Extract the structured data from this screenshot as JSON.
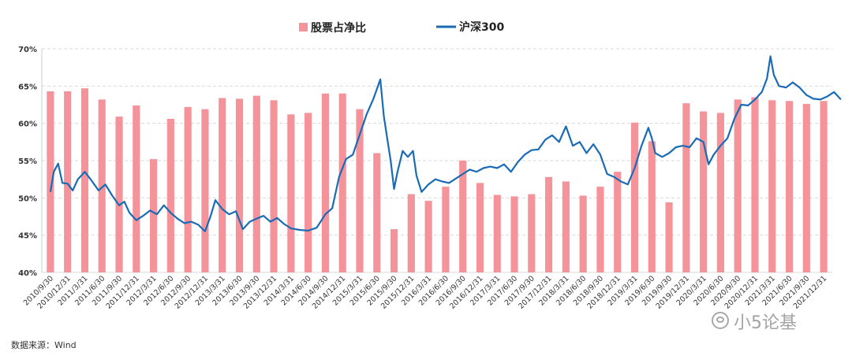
{
  "source": "数据来源：Wind",
  "watermark": "小5论基",
  "chart_data": {
    "type": "bar+line",
    "legend": {
      "placement": "top-center"
    },
    "grid": {
      "y": true,
      "x": false
    },
    "ylim": [
      40,
      70
    ],
    "yticks": [
      "40%",
      "45%",
      "50%",
      "55%",
      "60%",
      "65%",
      "70%"
    ],
    "yticks_values": [
      40,
      45,
      50,
      55,
      60,
      65,
      70
    ],
    "categories": [
      "2010/9/30",
      "2010/12/31",
      "2011/3/31",
      "2011/6/30",
      "2011/9/30",
      "2011/12/31",
      "2012/3/31",
      "2012/6/30",
      "2012/9/30",
      "2012/12/31",
      "2013/3/31",
      "2013/6/30",
      "2013/9/30",
      "2013/12/31",
      "2014/3/31",
      "2014/6/30",
      "2014/9/30",
      "2014/12/31",
      "2015/3/31",
      "2015/6/30",
      "2015/9/30",
      "2015/12/31",
      "2016/3/31",
      "2016/6/30",
      "2016/9/30",
      "2016/12/31",
      "2017/3/31",
      "2017/6/30",
      "2017/9/30",
      "2017/12/31",
      "2018/3/31",
      "2018/6/30",
      "2018/9/30",
      "2018/12/31",
      "2019/3/31",
      "2019/6/30",
      "2019/9/30",
      "2019/12/31",
      "2020/3/31",
      "2020/6/30",
      "2020/9/30",
      "2020/12/31",
      "2021/3/31",
      "2021/6/30",
      "2021/9/30",
      "2021/12/31"
    ],
    "series": [
      {
        "name": "股票占净比",
        "kind": "bar",
        "color": "#F5939B",
        "values": [
          64.3,
          64.3,
          64.7,
          63.2,
          60.9,
          62.4,
          55.2,
          60.6,
          62.2,
          61.9,
          63.4,
          63.3,
          63.7,
          63.1,
          61.2,
          61.4,
          64.0,
          64.0,
          61.9,
          56.0,
          45.8,
          50.5,
          49.6,
          51.5,
          55.0,
          52.0,
          50.4,
          50.2,
          50.5,
          52.8,
          52.2,
          50.3,
          51.5,
          53.5,
          60.1,
          57.6,
          49.4,
          62.7,
          61.6,
          61.4,
          63.2,
          63.5,
          63.1,
          63.0,
          62.6,
          63.0
        ]
      },
      {
        "name": "沪深300",
        "kind": "line",
        "color": "#1A6BB5",
        "points": [
          [
            0,
            50.8
          ],
          [
            0.2,
            53.5
          ],
          [
            0.45,
            54.6
          ],
          [
            0.7,
            52.0
          ],
          [
            1.0,
            51.9
          ],
          [
            1.3,
            51.0
          ],
          [
            1.6,
            52.5
          ],
          [
            2.0,
            53.5
          ],
          [
            2.4,
            52.3
          ],
          [
            2.8,
            51.0
          ],
          [
            3.2,
            51.8
          ],
          [
            3.6,
            50.3
          ],
          [
            4.0,
            49.0
          ],
          [
            4.3,
            49.5
          ],
          [
            4.6,
            48.0
          ],
          [
            5.0,
            47.0
          ],
          [
            5.4,
            47.6
          ],
          [
            5.8,
            48.3
          ],
          [
            6.2,
            47.8
          ],
          [
            6.6,
            49.0
          ],
          [
            7.0,
            48.0
          ],
          [
            7.4,
            47.2
          ],
          [
            7.8,
            46.6
          ],
          [
            8.2,
            46.8
          ],
          [
            8.6,
            46.4
          ],
          [
            9.0,
            45.5
          ],
          [
            9.3,
            47.4
          ],
          [
            9.6,
            49.7
          ],
          [
            10.0,
            48.5
          ],
          [
            10.4,
            47.8
          ],
          [
            10.8,
            48.2
          ],
          [
            11.2,
            45.8
          ],
          [
            11.6,
            46.8
          ],
          [
            12.0,
            47.2
          ],
          [
            12.4,
            47.6
          ],
          [
            12.8,
            46.8
          ],
          [
            13.2,
            47.3
          ],
          [
            13.6,
            46.5
          ],
          [
            14.0,
            45.9
          ],
          [
            14.5,
            45.7
          ],
          [
            15.0,
            45.6
          ],
          [
            15.5,
            46.0
          ],
          [
            16.0,
            47.8
          ],
          [
            16.4,
            48.6
          ],
          [
            16.8,
            52.8
          ],
          [
            17.2,
            55.2
          ],
          [
            17.6,
            55.8
          ],
          [
            18.0,
            58.5
          ],
          [
            18.4,
            61.2
          ],
          [
            18.8,
            63.3
          ],
          [
            19.2,
            65.9
          ],
          [
            19.4,
            61.0
          ],
          [
            19.6,
            58.0
          ],
          [
            19.8,
            55.0
          ],
          [
            20.0,
            51.2
          ],
          [
            20.2,
            53.5
          ],
          [
            20.5,
            56.3
          ],
          [
            20.8,
            55.5
          ],
          [
            21.1,
            56.3
          ],
          [
            21.3,
            53.0
          ],
          [
            21.6,
            50.8
          ],
          [
            22.0,
            51.8
          ],
          [
            22.4,
            52.5
          ],
          [
            22.8,
            52.2
          ],
          [
            23.2,
            52.0
          ],
          [
            23.6,
            52.6
          ],
          [
            24.0,
            53.2
          ],
          [
            24.4,
            53.8
          ],
          [
            24.8,
            53.5
          ],
          [
            25.2,
            54.0
          ],
          [
            25.6,
            54.2
          ],
          [
            26.0,
            54.0
          ],
          [
            26.4,
            54.5
          ],
          [
            26.8,
            53.5
          ],
          [
            27.2,
            54.8
          ],
          [
            27.6,
            55.8
          ],
          [
            28.0,
            56.4
          ],
          [
            28.4,
            56.5
          ],
          [
            28.8,
            57.8
          ],
          [
            29.2,
            58.4
          ],
          [
            29.6,
            57.5
          ],
          [
            30.0,
            59.6
          ],
          [
            30.4,
            57.0
          ],
          [
            30.8,
            57.5
          ],
          [
            31.2,
            56.0
          ],
          [
            31.6,
            57.2
          ],
          [
            32.0,
            55.8
          ],
          [
            32.4,
            53.2
          ],
          [
            32.8,
            52.8
          ],
          [
            33.2,
            52.2
          ],
          [
            33.6,
            51.8
          ],
          [
            34.0,
            54.0
          ],
          [
            34.4,
            57.0
          ],
          [
            34.8,
            59.4
          ],
          [
            35.0,
            58.0
          ],
          [
            35.2,
            56.0
          ],
          [
            35.6,
            55.5
          ],
          [
            36.0,
            56.0
          ],
          [
            36.4,
            56.8
          ],
          [
            36.8,
            57.0
          ],
          [
            37.2,
            56.8
          ],
          [
            37.6,
            58.0
          ],
          [
            38.0,
            57.5
          ],
          [
            38.3,
            54.5
          ],
          [
            38.6,
            55.8
          ],
          [
            39.0,
            57.0
          ],
          [
            39.4,
            58.0
          ],
          [
            39.8,
            60.6
          ],
          [
            40.2,
            62.5
          ],
          [
            40.6,
            62.4
          ],
          [
            41.0,
            63.2
          ],
          [
            41.4,
            64.2
          ],
          [
            41.7,
            66.0
          ],
          [
            41.9,
            69.0
          ],
          [
            42.1,
            66.5
          ],
          [
            42.4,
            65.0
          ],
          [
            42.8,
            64.8
          ],
          [
            43.2,
            65.5
          ],
          [
            43.6,
            64.8
          ],
          [
            44.0,
            63.8
          ],
          [
            44.4,
            63.3
          ],
          [
            44.8,
            63.2
          ],
          [
            45.2,
            63.6
          ],
          [
            45.6,
            64.2
          ],
          [
            46.0,
            63.2
          ]
        ]
      }
    ]
  }
}
